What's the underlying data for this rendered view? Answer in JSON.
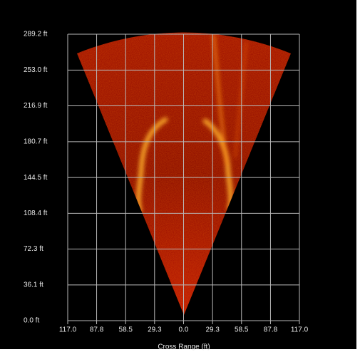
{
  "chart_data": {
    "type": "sonar-fan",
    "x_label": "Cross Range (ft)",
    "xlim": [
      -117,
      117
    ],
    "ylim": [
      0,
      289.2
    ],
    "xticks": [
      {
        "value": -117,
        "label": "117.0"
      },
      {
        "value": -87.8,
        "label": "87.8"
      },
      {
        "value": -58.5,
        "label": "58.5"
      },
      {
        "value": -29.3,
        "label": "29.3"
      },
      {
        "value": 0,
        "label": "0.0"
      },
      {
        "value": 29.3,
        "label": "29.3"
      },
      {
        "value": 58.5,
        "label": "58.5"
      },
      {
        "value": 87.8,
        "label": "87.8"
      },
      {
        "value": 117,
        "label": "117.0"
      }
    ],
    "yticks": [
      {
        "value": 0,
        "label": "0.0 ft"
      },
      {
        "value": 36.1,
        "label": "36.1 ft"
      },
      {
        "value": 72.3,
        "label": "72.3 ft"
      },
      {
        "value": 108.4,
        "label": "108.4 ft"
      },
      {
        "value": 144.5,
        "label": "144.5 ft"
      },
      {
        "value": 180.7,
        "label": "180.7 ft"
      },
      {
        "value": 216.9,
        "label": "216.9 ft"
      },
      {
        "value": 253.0,
        "label": "253.0 ft"
      },
      {
        "value": 289.2,
        "label": "289.2 ft"
      }
    ],
    "grid": true
  }
}
